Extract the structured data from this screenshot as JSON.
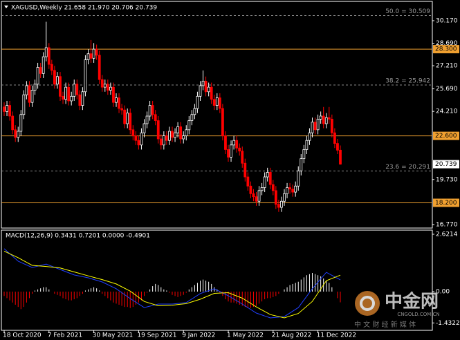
{
  "chart_data": [
    {
      "type": "candlestick",
      "title": "XAGUSD,Weekly  21.658 21.970 20.706 20.739",
      "bull_color": "#ffffff",
      "bear_color": "#ff0000",
      "candles": [
        [
          24.5,
          24.8,
          23.9,
          24.2
        ],
        [
          24.2,
          24.9,
          23.9,
          24.6
        ],
        [
          24.6,
          24.9,
          23.6,
          23.9
        ],
        [
          23.9,
          24.2,
          22.7,
          23.0
        ],
        [
          23.0,
          23.3,
          22.2,
          22.5
        ],
        [
          22.5,
          23.2,
          22.2,
          22.9
        ],
        [
          22.9,
          24.3,
          22.6,
          24.0
        ],
        [
          24.0,
          25.6,
          23.7,
          25.3
        ],
        [
          25.3,
          26.2,
          25.0,
          25.9
        ],
        [
          25.9,
          26.2,
          24.5,
          24.8
        ],
        [
          24.8,
          25.9,
          24.5,
          25.6
        ],
        [
          25.6,
          26.3,
          25.3,
          26.0
        ],
        [
          26.0,
          27.4,
          25.7,
          27.1
        ],
        [
          27.1,
          27.4,
          26.4,
          26.7
        ],
        [
          26.7,
          28.1,
          26.4,
          27.8
        ],
        [
          27.8,
          30.1,
          27.5,
          28.4
        ],
        [
          28.4,
          28.7,
          27.0,
          27.3
        ],
        [
          27.3,
          27.6,
          26.6,
          26.9
        ],
        [
          26.9,
          27.2,
          25.7,
          26.0
        ],
        [
          26.0,
          26.8,
          25.7,
          26.5
        ],
        [
          26.5,
          26.8,
          24.9,
          25.2
        ],
        [
          25.2,
          25.5,
          24.7,
          25.0
        ],
        [
          25.0,
          26.1,
          24.7,
          25.8
        ],
        [
          25.8,
          26.1,
          24.6,
          24.9
        ],
        [
          24.9,
          25.5,
          24.6,
          25.2
        ],
        [
          25.2,
          26.3,
          24.9,
          26.0
        ],
        [
          26.0,
          26.3,
          25.0,
          25.3
        ],
        [
          25.3,
          25.6,
          24.3,
          24.6
        ],
        [
          24.6,
          25.8,
          24.3,
          25.5
        ],
        [
          25.5,
          27.9,
          25.2,
          27.6
        ],
        [
          27.6,
          28.3,
          27.3,
          28.0
        ],
        [
          28.0,
          28.9,
          27.4,
          27.7
        ],
        [
          27.7,
          28.7,
          27.4,
          28.3
        ],
        [
          28.3,
          28.6,
          27.6,
          27.9
        ],
        [
          27.9,
          28.2,
          26.0,
          26.3
        ],
        [
          26.3,
          26.6,
          25.5,
          25.8
        ],
        [
          25.8,
          26.3,
          25.5,
          26.0
        ],
        [
          26.0,
          26.3,
          25.3,
          25.6
        ],
        [
          25.6,
          26.1,
          25.3,
          25.8
        ],
        [
          25.8,
          26.1,
          24.5,
          24.8
        ],
        [
          24.8,
          25.4,
          24.5,
          25.1
        ],
        [
          25.1,
          25.4,
          24.1,
          24.4
        ],
        [
          24.4,
          24.7,
          24.0,
          24.3
        ],
        [
          24.3,
          24.6,
          23.1,
          23.4
        ],
        [
          23.4,
          24.4,
          23.1,
          24.1
        ],
        [
          24.1,
          24.4,
          22.7,
          23.0
        ],
        [
          23.0,
          23.3,
          22.3,
          22.6
        ],
        [
          22.6,
          22.9,
          22.0,
          22.3
        ],
        [
          22.3,
          22.6,
          21.7,
          22.0
        ],
        [
          22.0,
          23.1,
          21.7,
          22.8
        ],
        [
          22.8,
          23.7,
          22.5,
          23.4
        ],
        [
          23.4,
          24.2,
          23.1,
          23.9
        ],
        [
          23.9,
          24.9,
          23.6,
          24.6
        ],
        [
          24.6,
          24.9,
          23.7,
          24.0
        ],
        [
          24.0,
          24.3,
          23.3,
          23.6
        ],
        [
          23.6,
          23.9,
          22.1,
          22.4
        ],
        [
          22.4,
          22.7,
          21.7,
          22.0
        ],
        [
          22.0,
          22.9,
          21.7,
          22.6
        ],
        [
          22.6,
          22.9,
          22.0,
          22.3
        ],
        [
          22.3,
          23.2,
          22.0,
          22.9
        ],
        [
          22.9,
          23.2,
          22.2,
          22.5
        ],
        [
          22.5,
          23.1,
          22.2,
          22.8
        ],
        [
          22.8,
          23.5,
          22.5,
          23.2
        ],
        [
          23.2,
          23.5,
          22.1,
          22.4
        ],
        [
          22.4,
          22.9,
          22.1,
          22.6
        ],
        [
          22.6,
          23.3,
          22.3,
          23.0
        ],
        [
          23.0,
          23.9,
          22.7,
          23.6
        ],
        [
          23.6,
          24.3,
          23.3,
          24.0
        ],
        [
          24.0,
          24.7,
          23.7,
          24.4
        ],
        [
          24.4,
          25.5,
          24.1,
          25.2
        ],
        [
          25.2,
          26.2,
          24.9,
          25.9
        ],
        [
          25.9,
          26.9,
          25.6,
          26.2
        ],
        [
          26.2,
          26.5,
          25.2,
          25.5
        ],
        [
          25.5,
          26.1,
          25.2,
          25.8
        ],
        [
          25.8,
          26.1,
          24.7,
          25.0
        ],
        [
          25.0,
          25.3,
          24.3,
          24.6
        ],
        [
          24.6,
          25.4,
          24.3,
          25.1
        ],
        [
          25.1,
          25.4,
          24.1,
          24.4
        ],
        [
          24.4,
          24.7,
          22.3,
          22.6
        ],
        [
          22.6,
          22.9,
          21.4,
          21.7
        ],
        [
          21.7,
          22.0,
          20.9,
          21.2
        ],
        [
          21.2,
          22.3,
          20.9,
          22.0
        ],
        [
          22.0,
          22.6,
          21.7,
          22.3
        ],
        [
          22.3,
          22.6,
          21.5,
          21.8
        ],
        [
          21.8,
          22.1,
          21.3,
          21.6
        ],
        [
          21.6,
          21.9,
          20.5,
          20.8
        ],
        [
          20.8,
          21.1,
          19.6,
          19.9
        ],
        [
          19.9,
          20.2,
          19.0,
          19.3
        ],
        [
          19.3,
          19.6,
          18.5,
          18.8
        ],
        [
          18.8,
          19.1,
          18.3,
          18.6
        ],
        [
          18.6,
          18.9,
          18.0,
          18.3
        ],
        [
          18.3,
          19.3,
          18.0,
          19.0
        ],
        [
          19.0,
          19.5,
          18.7,
          19.2
        ],
        [
          19.2,
          20.2,
          18.9,
          19.9
        ],
        [
          19.9,
          20.5,
          19.6,
          20.2
        ],
        [
          20.2,
          20.5,
          19.1,
          19.4
        ],
        [
          19.4,
          19.7,
          18.7,
          19.0
        ],
        [
          19.0,
          19.3,
          17.8,
          18.1
        ],
        [
          18.1,
          18.4,
          17.6,
          17.9
        ],
        [
          17.9,
          18.6,
          17.6,
          18.3
        ],
        [
          18.3,
          19.1,
          18.0,
          18.8
        ],
        [
          18.8,
          19.5,
          18.5,
          19.2
        ],
        [
          19.2,
          19.5,
          18.8,
          19.1
        ],
        [
          19.1,
          19.4,
          18.6,
          18.9
        ],
        [
          18.9,
          19.6,
          18.6,
          19.3
        ],
        [
          19.3,
          20.6,
          19.0,
          20.3
        ],
        [
          20.3,
          21.4,
          20.0,
          21.1
        ],
        [
          21.1,
          22.0,
          20.8,
          21.7
        ],
        [
          21.7,
          22.6,
          21.4,
          22.3
        ],
        [
          22.3,
          23.1,
          22.0,
          22.8
        ],
        [
          22.8,
          23.8,
          22.5,
          23.5
        ],
        [
          23.5,
          23.8,
          22.7,
          23.0
        ],
        [
          23.0,
          24.0,
          22.7,
          23.7
        ],
        [
          23.7,
          24.2,
          23.4,
          23.9
        ],
        [
          23.9,
          24.5,
          23.1,
          23.4
        ],
        [
          23.4,
          24.1,
          23.1,
          23.8
        ],
        [
          23.8,
          24.5,
          23.4,
          23.7
        ],
        [
          23.7,
          24.0,
          22.5,
          22.8
        ],
        [
          22.8,
          23.1,
          21.8,
          22.1
        ],
        [
          22.1,
          22.4,
          21.4,
          21.658
        ],
        [
          21.658,
          21.97,
          20.706,
          20.739
        ]
      ],
      "ylim": [
        16.54,
        31.44
      ],
      "yticks": [
        {
          "value": 30.17,
          "label": "30.170"
        },
        {
          "value": 28.69,
          "label": "28.690"
        },
        {
          "value": 27.21,
          "label": "27.210"
        },
        {
          "value": 25.69,
          "label": "25.690"
        },
        {
          "value": 24.21,
          "label": "24.210"
        },
        {
          "value": 19.73,
          "label": "19.730"
        },
        {
          "value": 16.77,
          "label": "16.770"
        }
      ],
      "levels": [
        {
          "value": 28.3,
          "label": "28.300",
          "color": "#f0a030"
        },
        {
          "value": 22.6,
          "label": "22.600",
          "color": "#f0a030"
        },
        {
          "value": 18.2,
          "label": "18.200",
          "color": "#f0a030"
        }
      ],
      "fib_levels": [
        {
          "value": 30.509,
          "label": "50.0 = 30.509"
        },
        {
          "value": 25.942,
          "label": "38.2 = 25.942"
        },
        {
          "value": 20.291,
          "label": "23.6 = 20.291"
        }
      ],
      "last_price": {
        "value": 20.739,
        "label": "20.739"
      },
      "xticks": [
        {
          "value": 0,
          "label": "18 Oct 2020"
        },
        {
          "value": 16,
          "label": "7 Feb 2021"
        },
        {
          "value": 32,
          "label": "30 May 2021"
        },
        {
          "value": 48,
          "label": "19 Sep 2021"
        },
        {
          "value": 64,
          "label": "9 Jan 2022"
        },
        {
          "value": 80,
          "label": "1 May 2022"
        },
        {
          "value": 96,
          "label": "21 Aug 2022"
        },
        {
          "value": 112,
          "label": "11 Dec 2022"
        }
      ]
    },
    {
      "type": "macd",
      "title": "MACD(12,26,9) 0.3431 0.7201 0.0000 -0.4901",
      "pos_color": "#ffffff",
      "neg_color": "#ff0000",
      "histogram": [
        -0.2,
        -0.3,
        -0.4,
        -0.5,
        -0.6,
        -0.7,
        -0.8,
        -0.7,
        -0.5,
        -0.3,
        -0.1,
        0.05,
        0.1,
        0.15,
        0.2,
        0.2,
        0.1,
        0.0,
        -0.1,
        -0.15,
        -0.2,
        -0.3,
        -0.35,
        -0.4,
        -0.4,
        -0.35,
        -0.3,
        -0.2,
        -0.1,
        0.05,
        0.1,
        0.15,
        0.2,
        0.15,
        0.05,
        -0.1,
        -0.2,
        -0.3,
        -0.4,
        -0.5,
        -0.55,
        -0.6,
        -0.65,
        -0.7,
        -0.7,
        -0.75,
        -0.7,
        -0.6,
        -0.5,
        -0.4,
        -0.2,
        -0.05,
        0.1,
        0.25,
        0.35,
        0.3,
        0.2,
        0.1,
        0.05,
        -0.05,
        -0.15,
        -0.2,
        -0.25,
        -0.2,
        -0.15,
        -0.05,
        0.1,
        0.2,
        0.3,
        0.4,
        0.5,
        0.55,
        0.5,
        0.45,
        0.35,
        0.2,
        0.1,
        -0.05,
        -0.2,
        -0.35,
        -0.45,
        -0.5,
        -0.5,
        -0.55,
        -0.6,
        -0.65,
        -0.7,
        -0.75,
        -0.75,
        -0.7,
        -0.65,
        -0.55,
        -0.45,
        -0.35,
        -0.3,
        -0.3,
        -0.25,
        -0.2,
        -0.1,
        0.0,
        0.1,
        0.2,
        0.3,
        0.35,
        0.4,
        0.45,
        0.55,
        0.65,
        0.75,
        0.8,
        0.85,
        0.8,
        0.75,
        0.7,
        0.6,
        0.5,
        0.4,
        0.2,
        0.0,
        -0.3,
        -0.4901
      ],
      "x": [
        0,
        5,
        10,
        15,
        20,
        25,
        30,
        35,
        40,
        45,
        50,
        55,
        60,
        65,
        70,
        75,
        80,
        85,
        90,
        95,
        100,
        105,
        110,
        115,
        120
      ],
      "series": [
        {
          "color": "#2040ff",
          "values": [
            1.96,
            1.39,
            1.1,
            1.26,
            1.01,
            0.76,
            0.63,
            0.44,
            0.13,
            -0.32,
            -0.73,
            -0.57,
            -0.57,
            -0.5,
            -0.09,
            0.13,
            -0.19,
            -0.57,
            -0.98,
            -1.2,
            -1.14,
            -0.73,
            0.13,
            0.88,
            0.54
          ]
        },
        {
          "color": "#ffff00",
          "values": [
            1.85,
            1.55,
            1.2,
            1.15,
            1.08,
            0.9,
            0.72,
            0.55,
            0.35,
            0.02,
            -0.45,
            -0.65,
            -0.62,
            -0.55,
            -0.35,
            -0.08,
            -0.05,
            -0.3,
            -0.7,
            -1.05,
            -1.2,
            -1.0,
            -0.45,
            0.5,
            0.75
          ]
        }
      ],
      "ylim": [
        -1.77,
        2.81
      ],
      "yticks": [
        2.6214,
        {
          "value": 0,
          "label": "0.00"
        },
        -1.4322
      ]
    }
  ],
  "watermark": {
    "title": "中金网",
    "url": "CNGOLD.COM.CN",
    "tagline": "中 文 财 经 新 媒 体"
  }
}
